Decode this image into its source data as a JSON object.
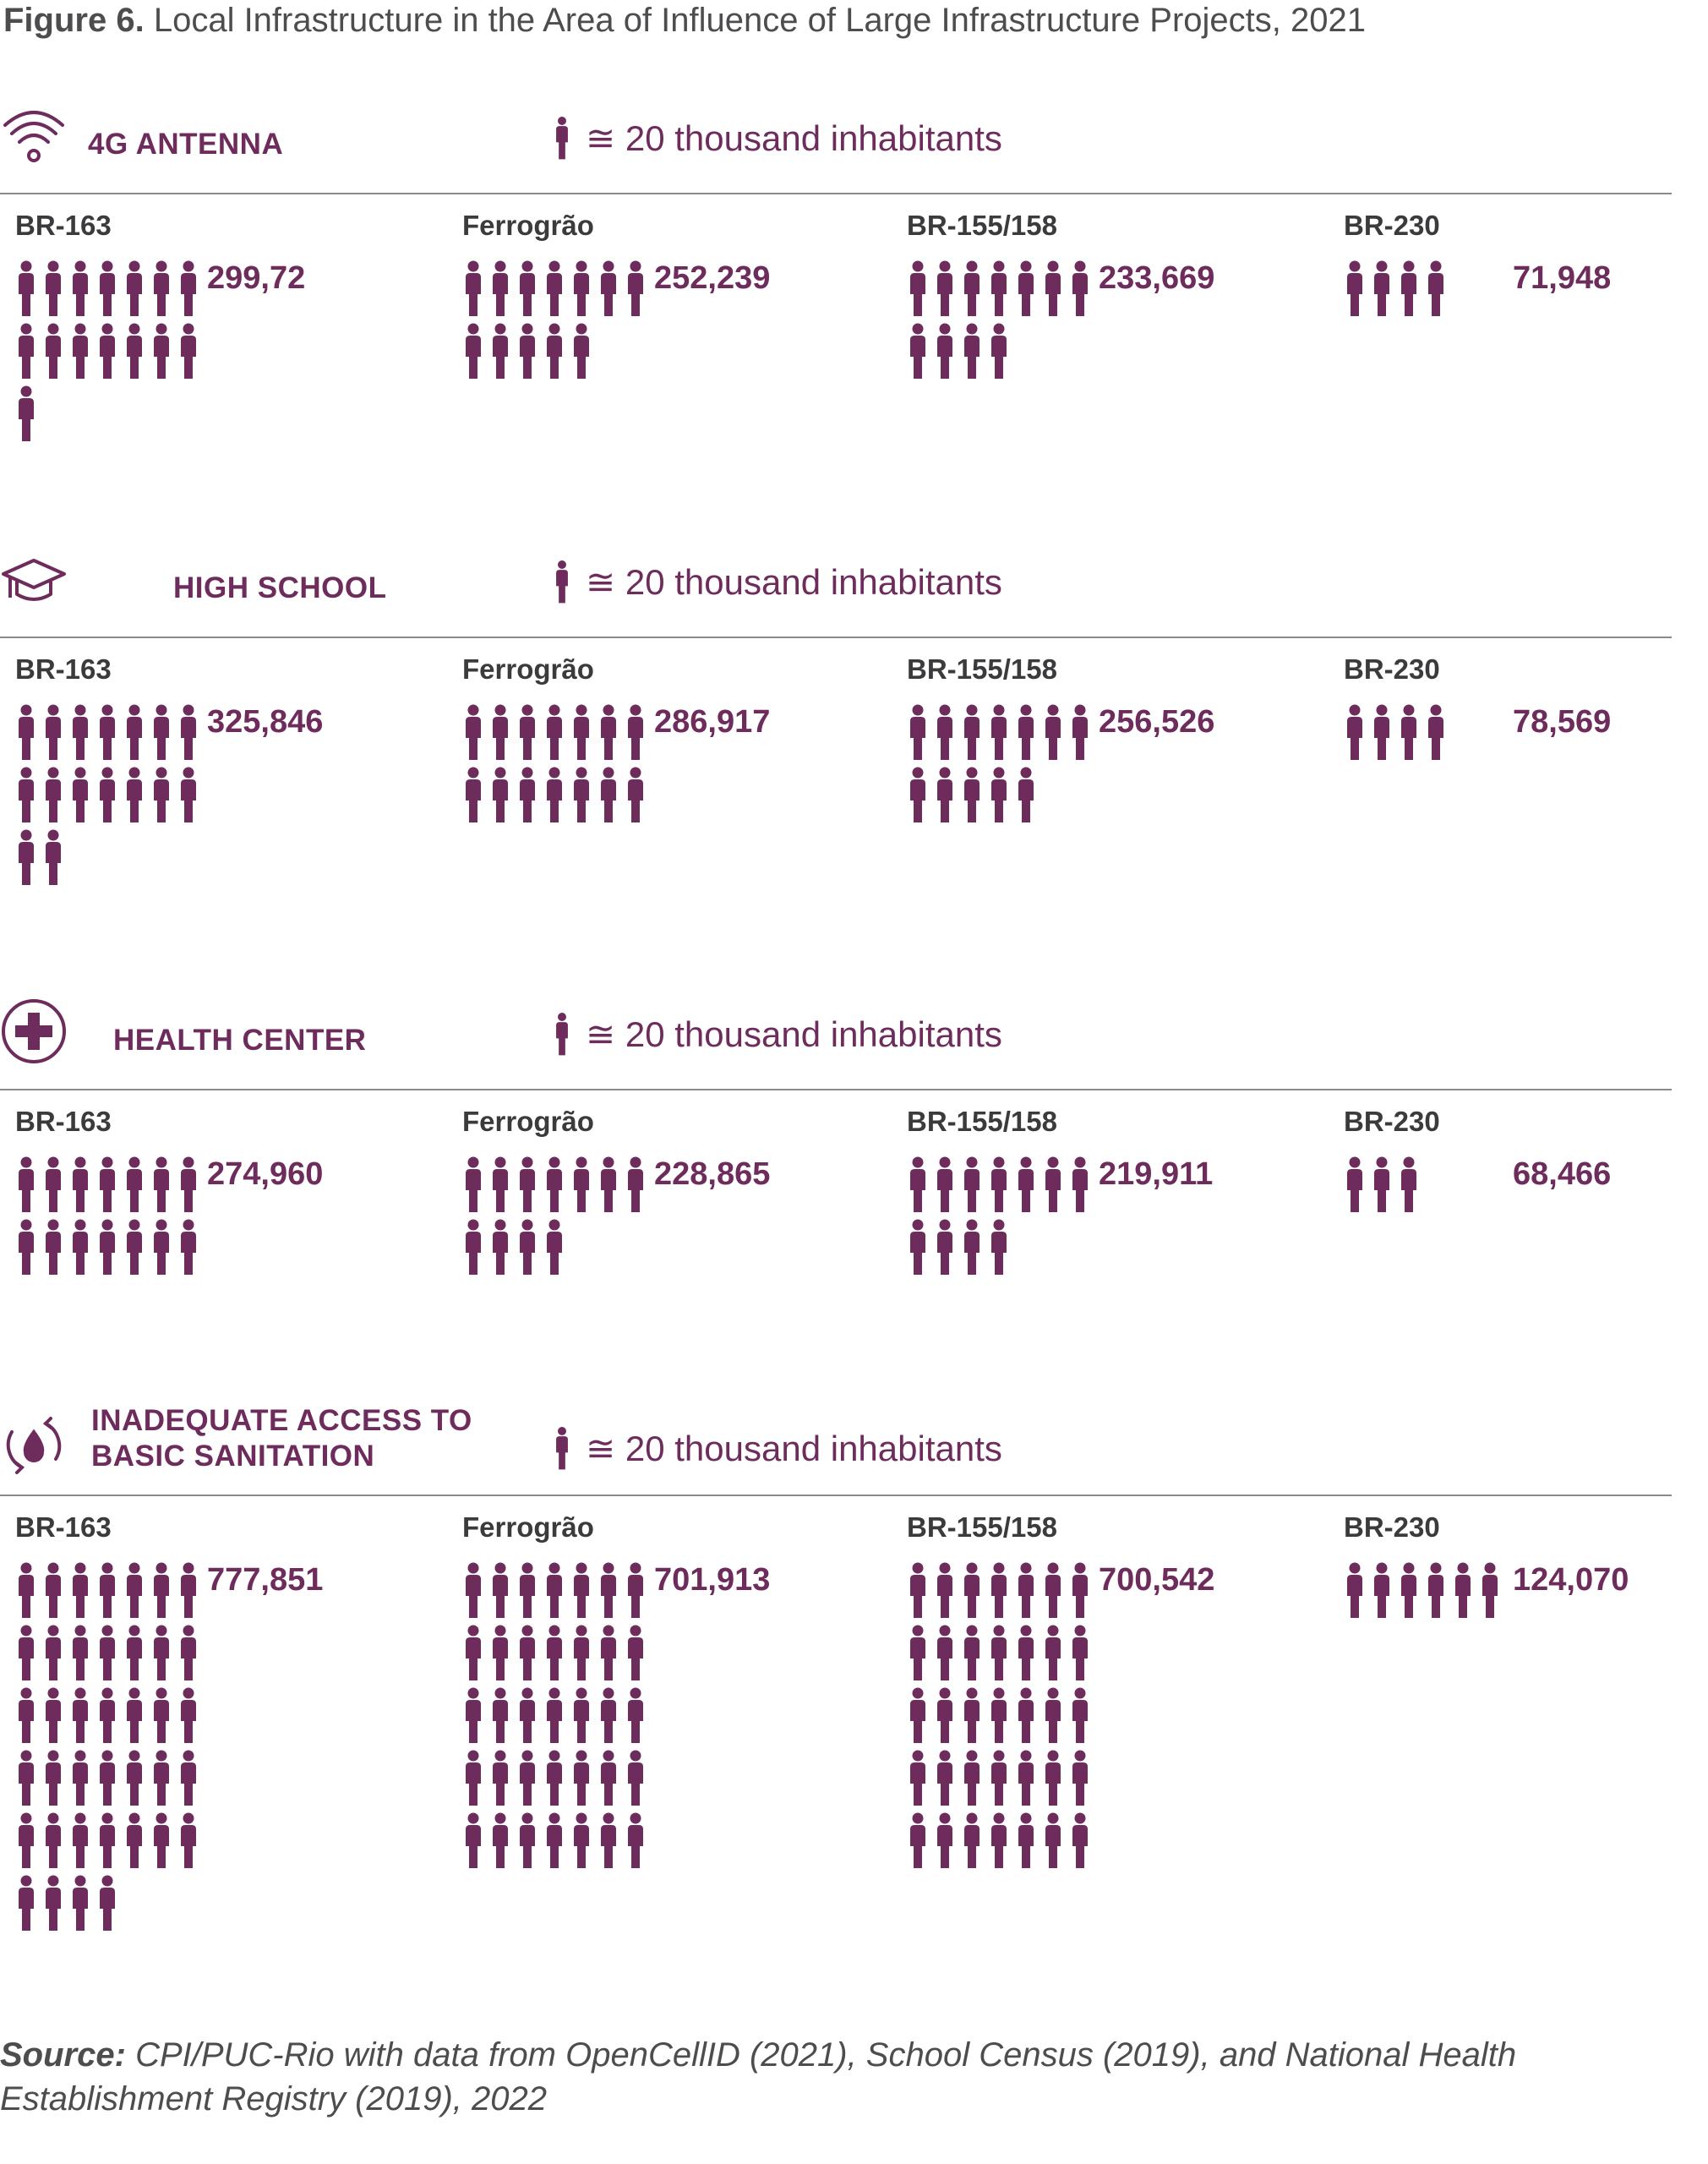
{
  "figure": {
    "label": "Figure 6.",
    "title": "Local Infrastructure in the Area of Influence of Large Infrastructure Projects, 2021"
  },
  "legend_text": "≅ 20 thousand inhabitants",
  "colors": {
    "accent": "#6e2c5c",
    "rule": "#8a8a8a",
    "text_dark": "#3b3b3d"
  },
  "chart_data": [
    {
      "type": "pictograph",
      "label": "4G ANTENNA",
      "icon": "wifi-icon",
      "unit": "≅ 20 thousand inhabitants",
      "projects": [
        {
          "name": "BR-163",
          "value": "299,72",
          "icons": 15
        },
        {
          "name": "Ferrogrão",
          "value": "252,239",
          "icons": 12
        },
        {
          "name": "BR-155/158",
          "value": "233,669",
          "icons": 11
        },
        {
          "name": "BR-230",
          "value": "71,948",
          "icons": 4
        }
      ]
    },
    {
      "type": "pictograph",
      "label": "HIGH SCHOOL",
      "icon": "graduation-cap-icon",
      "unit": "≅ 20 thousand inhabitants",
      "projects": [
        {
          "name": "BR-163",
          "value": "325,846",
          "icons": 16
        },
        {
          "name": "Ferrogrão",
          "value": "286,917",
          "icons": 14
        },
        {
          "name": "BR-155/158",
          "value": "256,526",
          "icons": 12
        },
        {
          "name": "BR-230",
          "value": "78,569",
          "icons": 4
        }
      ]
    },
    {
      "type": "pictograph",
      "label": "HEALTH CENTER",
      "icon": "medical-cross-icon",
      "unit": "≅ 20 thousand inhabitants",
      "projects": [
        {
          "name": "BR-163",
          "value": "274,960",
          "icons": 14
        },
        {
          "name": "Ferrogrão",
          "value": "228,865",
          "icons": 11
        },
        {
          "name": "BR-155/158",
          "value": "219,911",
          "icons": 11
        },
        {
          "name": "BR-230",
          "value": "68,466",
          "icons": 3
        }
      ]
    },
    {
      "type": "pictograph",
      "label": "INADEQUATE ACCESS TO BASIC SANITATION",
      "label_lines": [
        "INADEQUATE ACCESS TO",
        "BASIC SANITATION"
      ],
      "icon": "water-cycle-icon",
      "unit": "≅ 20 thousand inhabitants",
      "projects": [
        {
          "name": "BR-163",
          "value": "777,851",
          "icons": 39
        },
        {
          "name": "Ferrogrão",
          "value": "701,913",
          "icons": 35
        },
        {
          "name": "BR-155/158",
          "value": "700,542",
          "icons": 35
        },
        {
          "name": "BR-230",
          "value": "124,070",
          "icons": 6
        }
      ]
    }
  ],
  "source": {
    "label": "Source:",
    "text": "CPI/PUC-Rio with data from OpenCellID (2021), School Census (2019), and National Health Establishment Registry (2019), 2022"
  }
}
